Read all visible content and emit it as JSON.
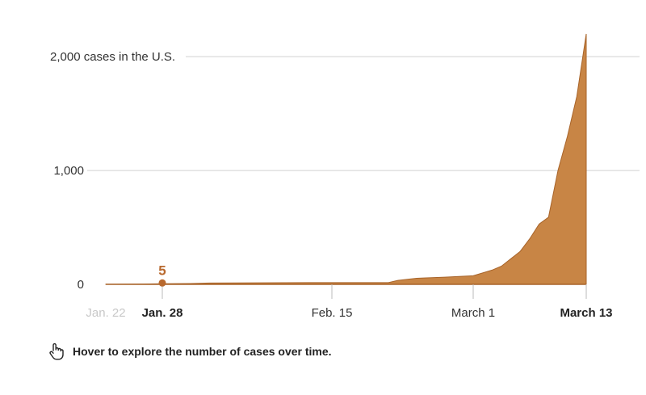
{
  "colors": {
    "area": "#c88545",
    "area_stroke": "#a8642a",
    "grid": "#d0d0d0",
    "marker": "#b8692e"
  },
  "chart_data": {
    "type": "area",
    "title": "",
    "xlabel": "",
    "ylabel": "",
    "ylim": [
      0,
      2200
    ],
    "x_range": [
      "2020-01-22",
      "2020-03-13"
    ],
    "grid": true,
    "y_ticks": [
      {
        "value": 0,
        "label": "0"
      },
      {
        "value": 1000,
        "label": "1,000"
      },
      {
        "value": 2000,
        "label": "2,000 cases in the U.S."
      }
    ],
    "x_ticks": [
      {
        "date": "2020-01-22",
        "label": "Jan. 22",
        "style": "faded"
      },
      {
        "date": "2020-01-28",
        "label": "Jan. 28",
        "style": "bold"
      },
      {
        "date": "2020-02-15",
        "label": "Feb. 15",
        "style": "normal"
      },
      {
        "date": "2020-03-01",
        "label": "March 1",
        "style": "normal"
      },
      {
        "date": "2020-03-13",
        "label": "March 13",
        "style": "bold"
      }
    ],
    "highlight": {
      "date": "2020-01-28",
      "value": 5,
      "label": "5"
    },
    "series": [
      {
        "x": [
          "2020-01-22",
          "2020-01-24",
          "2020-01-26",
          "2020-01-28",
          "2020-01-31",
          "2020-02-02",
          "2020-02-05",
          "2020-02-10",
          "2020-02-13",
          "2020-02-21",
          "2020-02-22",
          "2020-02-24",
          "2020-02-25",
          "2020-02-27",
          "2020-03-01",
          "2020-03-02",
          "2020-03-03",
          "2020-03-04",
          "2020-03-05",
          "2020-03-06",
          "2020-03-07",
          "2020-03-08",
          "2020-03-09",
          "2020-03-10",
          "2020-03-11",
          "2020-03-12",
          "2020-03-13"
        ],
        "values": [
          1,
          2,
          3,
          5,
          7,
          11,
          12,
          14,
          15,
          15,
          35,
          53,
          57,
          63,
          75,
          100,
          125,
          160,
          225,
          290,
          400,
          530,
          590,
          1000,
          1300,
          1650,
          2200
        ]
      }
    ]
  },
  "hint": {
    "text": "Hover to explore the number of cases over time.",
    "icon": "pointing-hand-icon"
  }
}
